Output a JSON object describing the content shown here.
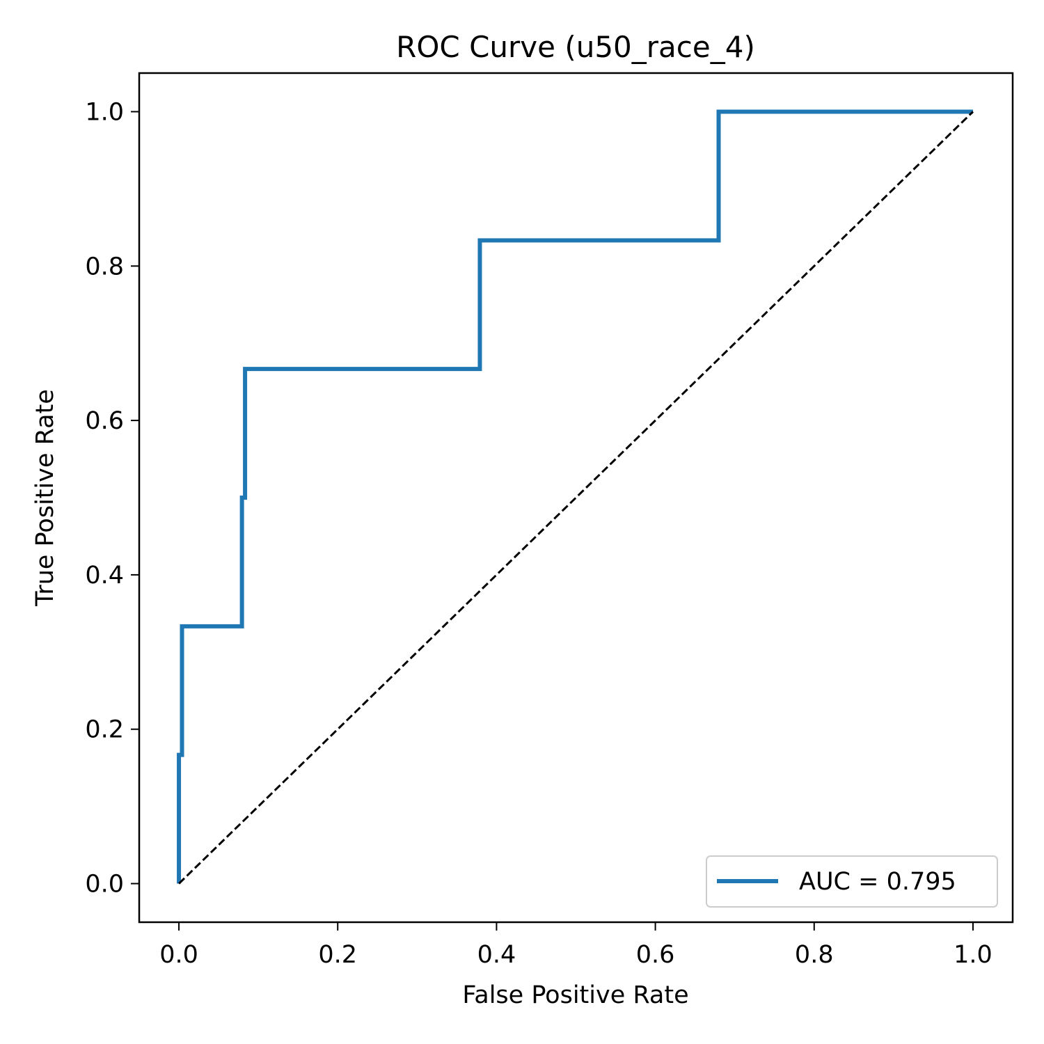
{
  "chart_data": {
    "type": "line",
    "title": "ROC Curve (u50_race_4)",
    "xlabel": "False Positive Rate",
    "ylabel": "True Positive Rate",
    "xlim": [
      -0.05,
      1.05
    ],
    "ylim": [
      -0.05,
      1.05
    ],
    "x_ticks": [
      "0.0",
      "0.2",
      "0.4",
      "0.6",
      "0.8",
      "1.0"
    ],
    "y_ticks": [
      "0.0",
      "0.2",
      "0.4",
      "0.6",
      "0.8",
      "1.0"
    ],
    "x_tick_values": [
      0.0,
      0.2,
      0.4,
      0.6,
      0.8,
      1.0
    ],
    "y_tick_values": [
      0.0,
      0.2,
      0.4,
      0.6,
      0.8,
      1.0
    ],
    "grid": false,
    "legend_position": "lower-right",
    "series": [
      {
        "name": "AUC = 0.795",
        "color": "#1f77b4",
        "style": "solid",
        "x": [
          0.0,
          0.0,
          0.0,
          0.0039,
          0.0039,
          0.0794,
          0.0794,
          0.0833,
          0.0833,
          0.379,
          0.379,
          0.6797,
          0.6797,
          1.0
        ],
        "y": [
          0.0,
          0.0,
          0.1667,
          0.1667,
          0.3333,
          0.3333,
          0.5,
          0.5,
          0.6667,
          0.6667,
          0.8333,
          0.8333,
          1.0,
          1.0
        ]
      },
      {
        "color": "#000000",
        "style": "dashed",
        "x": [
          0.0,
          1.0
        ],
        "y": [
          0.0,
          1.0
        ]
      }
    ]
  }
}
